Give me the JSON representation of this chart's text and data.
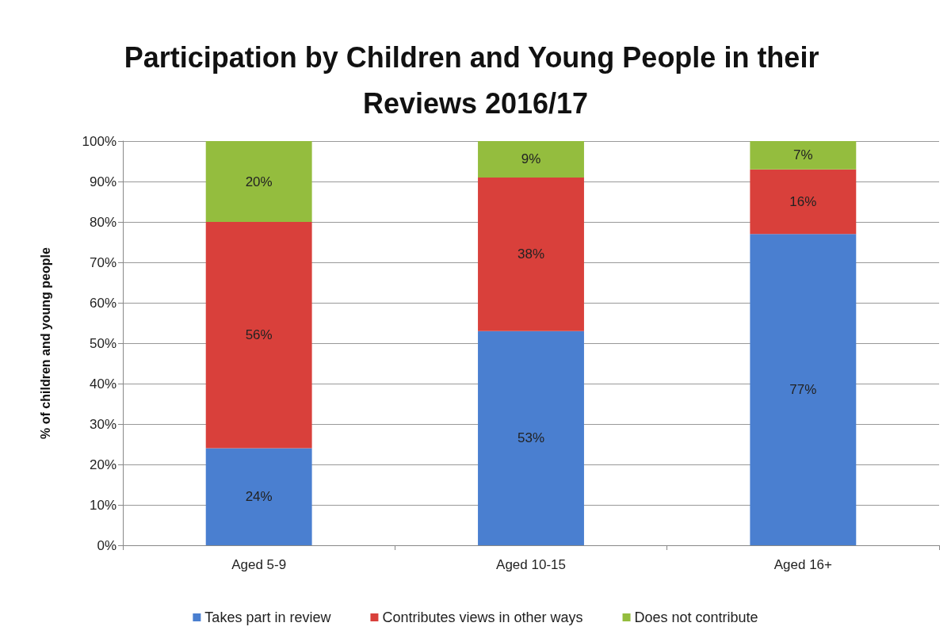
{
  "chart_data": {
    "type": "bar",
    "title": "Participation by Children and Young People in their Reviews 2016/17",
    "ylabel": "% of children and young people",
    "categories": [
      "Aged 5-9",
      "Aged 10-15",
      "Aged 16+"
    ],
    "stacked": true,
    "series": [
      {
        "name": "Takes part in review",
        "color": "#4a7fd0",
        "values": [
          24,
          53,
          77
        ],
        "value_labels": [
          "24%",
          "53%",
          "77%"
        ]
      },
      {
        "name": "Contributes views in other ways",
        "color": "#d9403b",
        "values": [
          56,
          38,
          16
        ],
        "value_labels": [
          "56%",
          "38%",
          "16%"
        ]
      },
      {
        "name": "Does not contribute",
        "color": "#94bd3e",
        "values": [
          20,
          9,
          7
        ],
        "value_labels": [
          "20%",
          "9%",
          "7%"
        ]
      }
    ],
    "ylim": [
      0,
      100
    ],
    "yticks": [
      {
        "value": 0,
        "label": "0%"
      },
      {
        "value": 10,
        "label": "10%"
      },
      {
        "value": 20,
        "label": "20%"
      },
      {
        "value": 30,
        "label": "30%"
      },
      {
        "value": 40,
        "label": "40%"
      },
      {
        "value": 50,
        "label": "50%"
      },
      {
        "value": 60,
        "label": "60%"
      },
      {
        "value": 70,
        "label": "70%"
      },
      {
        "value": 80,
        "label": "80%"
      },
      {
        "value": 90,
        "label": "90%"
      },
      {
        "value": 100,
        "label": "100%"
      }
    ],
    "grid": "y",
    "legend": "bottom"
  }
}
